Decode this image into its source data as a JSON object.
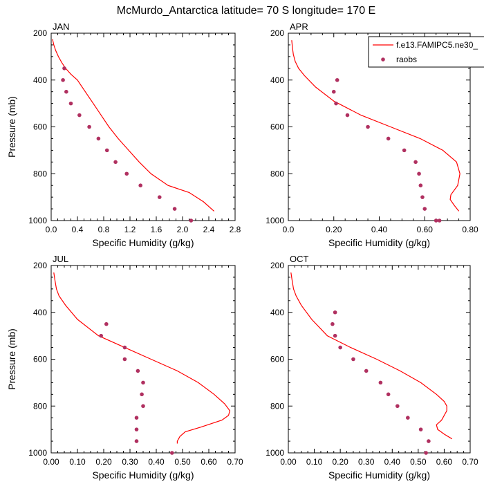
{
  "title": "McMurdo_Antarctica  latitude= 70 S longitude= 170 E",
  "legend": {
    "model_label": "f.e13.FAMIPC5.ne30_",
    "obs_label": "raobs"
  },
  "colors": {
    "model": "#ff0000",
    "obs": "#b03060",
    "axis": "#000000"
  },
  "chart_data": [
    {
      "type": "line",
      "panel": "JAN",
      "xlabel": "Specific Humidity (g/kg)",
      "ylabel": "Pressure (mb)",
      "xlim": [
        0,
        2.8
      ],
      "ylim": [
        1000,
        200
      ],
      "y_inverted": true,
      "xticks": [
        "0.0",
        "0.4",
        "0.8",
        "1.2",
        "1.6",
        "2.0",
        "2.4",
        "2.8"
      ],
      "yticks": [
        "200",
        "400",
        "600",
        "800",
        "1000"
      ],
      "series": [
        {
          "name": "f.e13.FAMIPC5.ne30_",
          "kind": "line",
          "x": [
            0.02,
            0.04,
            0.07,
            0.11,
            0.16,
            0.22,
            0.3,
            0.4,
            0.52,
            0.64,
            0.76,
            0.88,
            1.02,
            1.18,
            1.34,
            1.52,
            1.78,
            2.1,
            2.32,
            2.48
          ],
          "y": [
            225,
            250,
            275,
            300,
            325,
            350,
            375,
            400,
            450,
            500,
            550,
            600,
            650,
            700,
            750,
            800,
            850,
            880,
            920,
            960
          ]
        },
        {
          "name": "raobs",
          "kind": "scatter",
          "x": [
            0.2,
            0.18,
            0.23,
            0.3,
            0.43,
            0.58,
            0.72,
            0.85,
            0.98,
            1.15,
            1.36,
            1.65,
            1.88,
            2.13
          ],
          "y": [
            350,
            400,
            450,
            500,
            550,
            600,
            650,
            700,
            750,
            800,
            850,
            900,
            950,
            1000
          ]
        }
      ]
    },
    {
      "type": "line",
      "panel": "APR",
      "xlabel": "Specific Humidity (g/kg)",
      "ylabel": "Pressure (mb)",
      "xlim": [
        0,
        0.8
      ],
      "ylim": [
        1000,
        200
      ],
      "y_inverted": true,
      "xticks": [
        "0.0",
        "0.20",
        "0.40",
        "0.60",
        "0.80"
      ],
      "yticks": [
        "200",
        "400",
        "600",
        "800",
        "1000"
      ],
      "series": [
        {
          "name": "f.e13.FAMIPC5.ne30_",
          "kind": "line",
          "x": [
            0.015,
            0.018,
            0.022,
            0.03,
            0.045,
            0.07,
            0.12,
            0.2,
            0.32,
            0.45,
            0.58,
            0.68,
            0.74,
            0.755,
            0.745,
            0.715,
            0.712,
            0.73,
            0.75
          ],
          "y": [
            230,
            260,
            290,
            320,
            350,
            380,
            430,
            490,
            550,
            600,
            650,
            700,
            750,
            800,
            850,
            890,
            910,
            935,
            960
          ]
        },
        {
          "name": "raobs",
          "kind": "scatter",
          "x": [
            0.215,
            0.2,
            0.21,
            0.26,
            0.35,
            0.44,
            0.51,
            0.56,
            0.575,
            0.582,
            0.59,
            0.6,
            0.65,
            0.665
          ],
          "y": [
            400,
            450,
            500,
            550,
            600,
            650,
            700,
            750,
            800,
            850,
            900,
            950,
            1000,
            1000
          ]
        }
      ]
    },
    {
      "type": "line",
      "panel": "JUL",
      "xlabel": "Specific Humidity (g/kg)",
      "ylabel": "Pressure (mb)",
      "xlim": [
        0,
        0.7
      ],
      "ylim": [
        1000,
        200
      ],
      "y_inverted": true,
      "xticks": [
        "0.00",
        "0.10",
        "0.20",
        "0.30",
        "0.40",
        "0.50",
        "0.60",
        "0.70"
      ],
      "yticks": [
        "200",
        "400",
        "600",
        "800",
        "1000"
      ],
      "series": [
        {
          "name": "f.e13.FAMIPC5.ne30_",
          "kind": "line",
          "x": [
            0.01,
            0.014,
            0.02,
            0.03,
            0.055,
            0.1,
            0.18,
            0.28,
            0.38,
            0.48,
            0.56,
            0.62,
            0.66,
            0.68,
            0.675,
            0.65,
            0.57,
            0.51,
            0.49,
            0.48,
            0.48
          ],
          "y": [
            230,
            260,
            300,
            330,
            370,
            430,
            500,
            550,
            600,
            650,
            700,
            750,
            790,
            820,
            840,
            860,
            890,
            910,
            930,
            950,
            960
          ]
        },
        {
          "name": "raobs",
          "kind": "scatter",
          "x": [
            0.21,
            0.19,
            0.28,
            0.28,
            0.33,
            0.35,
            0.345,
            0.35,
            0.325,
            0.325,
            0.325,
            0.46
          ],
          "y": [
            450,
            500,
            550,
            600,
            650,
            700,
            750,
            800,
            850,
            900,
            950,
            1000
          ]
        }
      ]
    },
    {
      "type": "line",
      "panel": "OCT",
      "xlabel": "Specific Humidity (g/kg)",
      "ylabel": "Pressure (mb)",
      "xlim": [
        0,
        0.7
      ],
      "ylim": [
        1000,
        200
      ],
      "y_inverted": true,
      "xticks": [
        "0.00",
        "0.10",
        "0.20",
        "0.30",
        "0.40",
        "0.50",
        "0.60",
        "0.70"
      ],
      "yticks": [
        "200",
        "400",
        "600",
        "800",
        "1000"
      ],
      "series": [
        {
          "name": "f.e13.FAMIPC5.ne30_",
          "kind": "line",
          "x": [
            0.01,
            0.014,
            0.02,
            0.03,
            0.05,
            0.09,
            0.15,
            0.24,
            0.34,
            0.43,
            0.51,
            0.57,
            0.6,
            0.61,
            0.61,
            0.59,
            0.57,
            0.575,
            0.6,
            0.63
          ],
          "y": [
            230,
            260,
            300,
            330,
            370,
            430,
            500,
            550,
            600,
            650,
            700,
            750,
            780,
            800,
            820,
            860,
            880,
            900,
            920,
            940
          ]
        },
        {
          "name": "raobs",
          "kind": "scatter",
          "x": [
            0.18,
            0.17,
            0.18,
            0.2,
            0.25,
            0.3,
            0.355,
            0.385,
            0.42,
            0.46,
            0.51,
            0.54,
            0.53
          ],
          "y": [
            400,
            450,
            500,
            550,
            600,
            650,
            700,
            750,
            800,
            850,
            900,
            950,
            1000
          ]
        }
      ]
    }
  ]
}
